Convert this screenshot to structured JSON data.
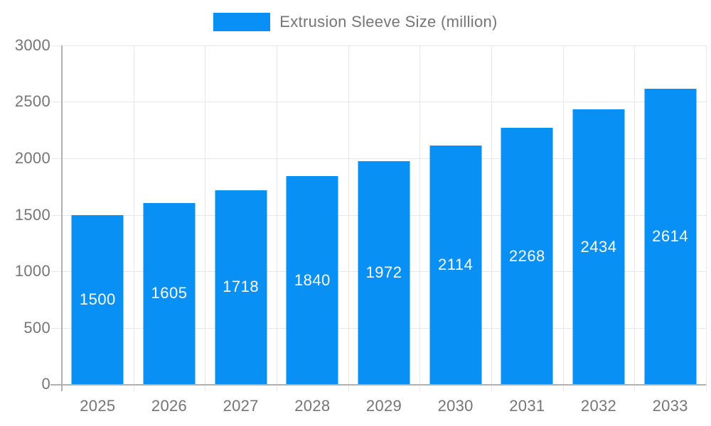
{
  "chart_data": {
    "type": "bar",
    "title": "",
    "legend": "Extrusion Sleeve Size (million)",
    "legend_position": "top-center",
    "xlabel": "",
    "ylabel": "",
    "categories": [
      "2025",
      "2026",
      "2027",
      "2028",
      "2029",
      "2030",
      "2031",
      "2032",
      "2033"
    ],
    "values": [
      1500,
      1605,
      1718,
      1840,
      1972,
      2114,
      2268,
      2434,
      2614
    ],
    "series": [
      {
        "name": "Extrusion Sleeve Size (million)",
        "values": [
          1500,
          1605,
          1718,
          1840,
          1972,
          2114,
          2268,
          2434,
          2614
        ]
      }
    ],
    "ylim": [
      0,
      3000
    ],
    "yticks": [
      0,
      500,
      1000,
      1500,
      2000,
      2500,
      3000
    ],
    "grid": true,
    "bar_labels_inside": true,
    "colors": {
      "bar": "#0890f5",
      "bar_label": "#ffffff",
      "axis_text": "#757575",
      "gridline": "#e7e7e7",
      "axis_line": "#b0b0b0",
      "background": "#ffffff"
    }
  }
}
